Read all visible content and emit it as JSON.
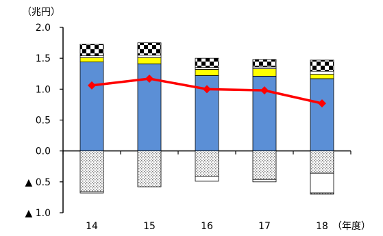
{
  "chart_data": {
    "type": "bar",
    "stacked": true,
    "y_unit_label": "（兆円）",
    "x_unit_label": "（年度）",
    "categories": [
      "14",
      "15",
      "16",
      "17",
      "18"
    ],
    "ylim": [
      -1.0,
      2.0
    ],
    "y_ticks": [
      {
        "value": 2.0,
        "label": "2.0"
      },
      {
        "value": 1.5,
        "label": "1.5"
      },
      {
        "value": 1.0,
        "label": "1.0"
      },
      {
        "value": 0.5,
        "label": "0.5"
      },
      {
        "value": 0.0,
        "label": "0.0"
      },
      {
        "value": -0.5,
        "label": "▲ 0.5"
      },
      {
        "value": -1.0,
        "label": "▲ 1.0"
      }
    ],
    "grid": false,
    "legend": "none",
    "series": [
      {
        "pattern": "solid",
        "color": "#5b8fd6",
        "values": [
          1.44,
          1.41,
          1.22,
          1.21,
          1.17
        ]
      },
      {
        "pattern": "solid",
        "color": "#ffff00",
        "values": [
          0.07,
          0.1,
          0.1,
          0.12,
          0.07
        ]
      },
      {
        "pattern": "white",
        "color": "#ffffff",
        "values": [
          0.03,
          0.04,
          0.03,
          0.03,
          0.05
        ]
      },
      {
        "pattern": "checker",
        "color": "#000000",
        "values": [
          0.19,
          0.2,
          0.15,
          0.12,
          0.18
        ]
      },
      {
        "pattern": "dotted",
        "color": "#c8c8c8",
        "values": [
          -0.66,
          -0.58,
          -0.41,
          -0.46,
          -0.36
        ]
      },
      {
        "pattern": "white",
        "color": "#ffffff",
        "values": [
          -0.02,
          0.0,
          -0.08,
          -0.04,
          -0.32
        ]
      },
      {
        "pattern": "dotted",
        "color": "#c8c8c8",
        "values": [
          0.0,
          0.0,
          0.0,
          0.0,
          -0.02
        ]
      }
    ],
    "line": {
      "color": "#ff0000",
      "values": [
        1.06,
        1.17,
        1.0,
        0.98,
        0.77
      ]
    }
  }
}
